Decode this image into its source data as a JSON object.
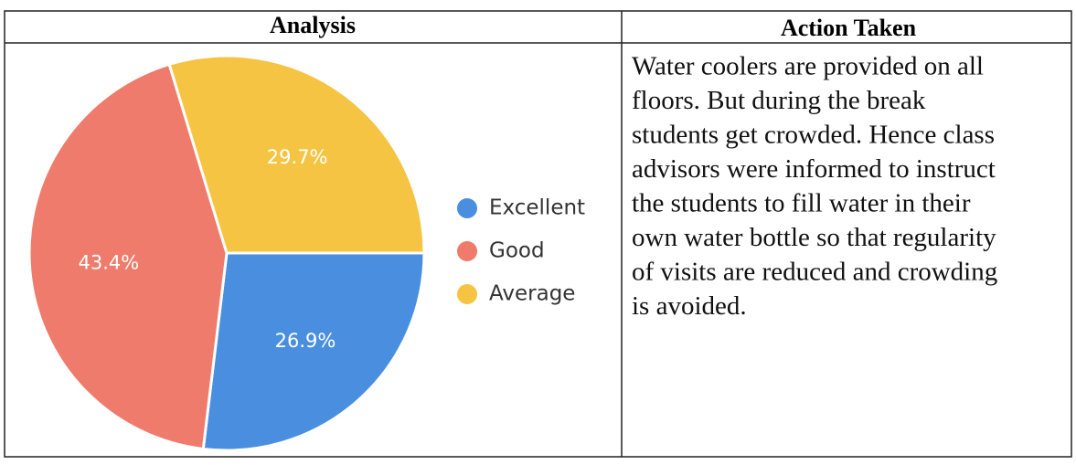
{
  "table": {
    "headers": [
      "Analysis",
      "Action Taken"
    ],
    "action_lines": [
      "Water coolers are provided on all",
      "floors. But during the break",
      "students get crowded. Hence class",
      "advisors were informed to instruct",
      "the students to fill water in their",
      "own water bottle so that regularity",
      "of visits are reduced and crowding",
      "is avoided."
    ]
  },
  "chart_data": {
    "type": "pie",
    "categories": [
      "Excellent",
      "Good",
      "Average"
    ],
    "values": [
      26.9,
      43.4,
      29.7
    ],
    "value_labels": [
      "26.9%",
      "43.4%",
      "29.7%"
    ],
    "colors": [
      "#4a8fdf",
      "#ee7b6b",
      "#f6c443"
    ],
    "legend": "right"
  }
}
